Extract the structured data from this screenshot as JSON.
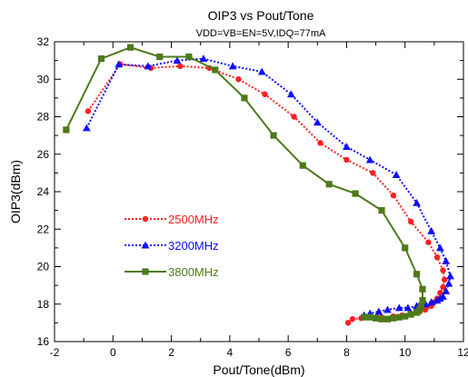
{
  "chart_data": {
    "type": "line",
    "title": "OIP3 vs Pout/Tone",
    "subtitle": "VDD=VB=EN=5V,IDQ=77mA",
    "xlabel": "Pout/Tone(dBm)",
    "ylabel": "OIP3(dBm)",
    "xlim": [
      -2,
      12
    ],
    "ylim": [
      16,
      32
    ],
    "xticks": [
      -2,
      0,
      2,
      4,
      6,
      8,
      10,
      12
    ],
    "yticks": [
      16,
      18,
      20,
      22,
      24,
      26,
      28,
      30,
      32
    ],
    "grid": false,
    "legend_position": "center-left",
    "series": [
      {
        "name": "2500MHz",
        "color": "#ff2020",
        "marker": "circle",
        "line_style": "dotted",
        "x": [
          -0.85,
          0.25,
          1.3,
          2.3,
          3.3,
          4.3,
          5.2,
          6.2,
          7.1,
          8.0,
          8.9,
          9.6,
          10.2,
          10.8,
          11.1,
          11.3,
          11.35,
          11.3,
          11.2,
          11.1,
          11.0,
          10.9,
          10.7,
          10.5,
          10.2,
          9.9,
          9.6,
          9.2,
          8.8,
          8.5,
          8.2,
          8.05
        ],
        "y": [
          28.3,
          30.8,
          30.6,
          30.7,
          30.6,
          30.0,
          29.2,
          28.0,
          26.6,
          25.7,
          25.0,
          23.8,
          22.4,
          21.3,
          20.5,
          19.8,
          19.3,
          18.9,
          18.6,
          18.3,
          18.1,
          17.9,
          17.7,
          17.6,
          17.5,
          17.4,
          17.35,
          17.3,
          17.3,
          17.25,
          17.2,
          17.0
        ]
      },
      {
        "name": "3200MHz",
        "color": "#1010ff",
        "marker": "triangle",
        "line_style": "dotted",
        "x": [
          -0.9,
          0.2,
          1.2,
          2.2,
          3.1,
          4.1,
          5.1,
          6.1,
          7.0,
          8.0,
          8.8,
          9.7,
          10.4,
          10.9,
          11.2,
          11.4,
          11.55,
          11.5,
          11.4,
          11.3,
          11.2,
          11.1,
          10.9,
          10.7,
          10.4,
          10.1,
          9.8,
          9.4,
          9.1,
          8.8,
          8.6
        ],
        "y": [
          27.4,
          30.8,
          30.7,
          31.0,
          31.1,
          30.7,
          30.4,
          29.2,
          27.7,
          26.4,
          25.7,
          24.9,
          23.4,
          21.9,
          21.0,
          20.3,
          19.5,
          19.1,
          18.7,
          18.4,
          18.3,
          18.2,
          18.1,
          18.0,
          17.9,
          17.8,
          17.8,
          17.7,
          17.6,
          17.5,
          17.4
        ]
      },
      {
        "name": "3800MHz",
        "color": "#4e7a1a",
        "marker": "square",
        "line_style": "solid",
        "x": [
          -1.6,
          -0.4,
          0.6,
          1.6,
          2.6,
          3.5,
          4.5,
          5.5,
          6.5,
          7.4,
          8.3,
          9.2,
          10.0,
          10.4,
          10.6,
          10.6,
          10.55,
          10.5,
          10.4,
          10.2,
          10.0,
          9.8,
          9.6,
          9.4,
          9.2,
          9.0,
          8.8,
          8.6
        ],
        "y": [
          27.3,
          31.1,
          31.7,
          31.2,
          31.2,
          30.5,
          29.0,
          27.0,
          25.4,
          24.4,
          23.9,
          23.0,
          21.0,
          19.6,
          18.8,
          18.2,
          17.9,
          17.7,
          17.55,
          17.45,
          17.35,
          17.3,
          17.25,
          17.2,
          17.2,
          17.25,
          17.3,
          17.3
        ]
      }
    ]
  }
}
